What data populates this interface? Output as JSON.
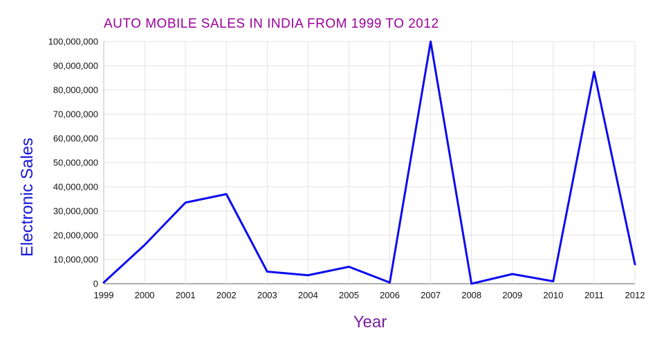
{
  "chart_data": {
    "type": "line",
    "title": "AUTO MOBILE SALES IN INDIA FROM 1999 TO 2012",
    "xlabel": "Year",
    "ylabel": "Electronic Sales",
    "categories": [
      "1999",
      "2000",
      "2001",
      "2002",
      "2003",
      "2004",
      "2005",
      "2006",
      "2007",
      "2008",
      "2009",
      "2010",
      "2011",
      "2012"
    ],
    "values": [
      500000,
      16000000,
      33500000,
      37000000,
      5000000,
      3500000,
      7000000,
      500000,
      100000000,
      0,
      4000000,
      1000000,
      87500000,
      8000000
    ],
    "ylim": [
      0,
      100000000
    ],
    "ytick_step": 10000000,
    "ytick_labels": [
      "0",
      "10,000,000",
      "20,000,000",
      "30,000,000",
      "40,000,000",
      "50,000,000",
      "60,000,000",
      "70,000,000",
      "80,000,000",
      "90,000,000",
      "100,000,000"
    ],
    "grid": true,
    "legend": "none",
    "colors": {
      "line": "#0B0BEF",
      "title": "#990099",
      "xlabel": "#7B1FA2",
      "ylabel": "#1414D9",
      "tick": "#111111",
      "grid": "#E3E3E3",
      "axis_left": "#BDBDBD",
      "axis_bottom": "#5F5F5F"
    }
  }
}
